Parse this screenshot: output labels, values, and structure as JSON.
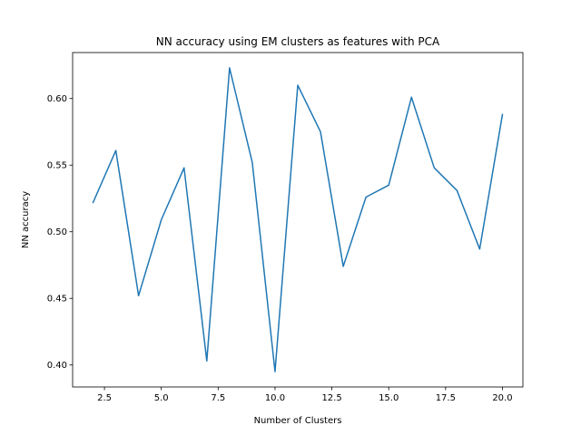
{
  "chart_data": {
    "type": "line",
    "title": "NN accuracy using EM clusters as features with PCA",
    "xlabel": "Number of Clusters",
    "ylabel": "NN accuracy",
    "xlim": [
      1.1,
      20.9
    ],
    "ylim": [
      0.3835,
      0.6345
    ],
    "xticks": [
      2.5,
      5.0,
      7.5,
      10.0,
      12.5,
      15.0,
      17.5,
      20.0
    ],
    "xtick_labels": [
      "2.5",
      "5.0",
      "7.5",
      "10.0",
      "12.5",
      "15.0",
      "17.5",
      "20.0"
    ],
    "yticks": [
      0.4,
      0.45,
      0.5,
      0.55,
      0.6
    ],
    "ytick_labels": [
      "0.40",
      "0.45",
      "0.50",
      "0.55",
      "0.60"
    ],
    "grid": false,
    "series": [
      {
        "color": "#1f77b4",
        "x": [
          2,
          3,
          4,
          5,
          6,
          7,
          8,
          9,
          10,
          11,
          12,
          13,
          14,
          15,
          16,
          17,
          18,
          19,
          20
        ],
        "y": [
          0.522,
          0.561,
          0.452,
          0.509,
          0.548,
          0.403,
          0.623,
          0.552,
          0.395,
          0.61,
          0.575,
          0.474,
          0.526,
          0.535,
          0.601,
          0.548,
          0.531,
          0.487,
          0.588
        ]
      }
    ]
  }
}
